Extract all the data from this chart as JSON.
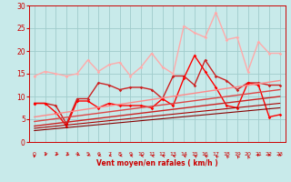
{
  "bg_color": "#c8eaea",
  "grid_color": "#a0cccc",
  "xlabel": "Vent moyen/en rafales ( km/h )",
  "xlim": [
    -0.5,
    23.5
  ],
  "ylim": [
    0,
    30
  ],
  "yticks": [
    0,
    5,
    10,
    15,
    20,
    25,
    30
  ],
  "xticks": [
    0,
    1,
    2,
    3,
    4,
    5,
    6,
    7,
    8,
    9,
    10,
    11,
    12,
    13,
    14,
    15,
    16,
    17,
    18,
    19,
    20,
    21,
    22,
    23
  ],
  "lines": [
    {
      "x": [
        0,
        1,
        2,
        3,
        4,
        5,
        6,
        7,
        8,
        9,
        10,
        11,
        12,
        13,
        14,
        15,
        16,
        17,
        18,
        19,
        20,
        21,
        22,
        23
      ],
      "y": [
        14.5,
        15.5,
        15.0,
        14.5,
        15.0,
        18.0,
        15.5,
        17.0,
        17.5,
        14.5,
        16.5,
        19.5,
        16.5,
        15.0,
        25.5,
        24.0,
        23.0,
        28.5,
        22.5,
        23.0,
        15.5,
        22.0,
        19.5,
        19.5
      ],
      "color": "#ffaaaa",
      "lw": 1.0,
      "marker": "D",
      "ms": 1.8
    },
    {
      "x": [
        0,
        1,
        2,
        3,
        4,
        5,
        6,
        7,
        8,
        9,
        10,
        11,
        12,
        13,
        14,
        15,
        16,
        17,
        18,
        19,
        20,
        21,
        22,
        23
      ],
      "y": [
        8.5,
        8.5,
        8.0,
        4.0,
        9.5,
        9.5,
        13.0,
        12.5,
        11.5,
        12.0,
        12.0,
        11.5,
        9.5,
        14.5,
        14.5,
        12.5,
        18.0,
        14.5,
        13.5,
        11.5,
        13.0,
        13.0,
        12.5,
        12.5
      ],
      "color": "#cc2222",
      "lw": 1.0,
      "marker": "D",
      "ms": 1.8
    },
    {
      "x": [
        0,
        1,
        2,
        3,
        4,
        5,
        6,
        7,
        8,
        9,
        10,
        11,
        12,
        13,
        14,
        15,
        16,
        17,
        18,
        19,
        20,
        21,
        22,
        23
      ],
      "y": [
        8.5,
        8.5,
        6.5,
        3.5,
        9.0,
        9.0,
        7.5,
        8.5,
        8.0,
        8.0,
        8.0,
        7.5,
        9.5,
        8.0,
        14.0,
        19.0,
        15.5,
        12.0,
        8.0,
        7.5,
        13.0,
        12.5,
        5.5,
        6.0
      ],
      "color": "#ff0000",
      "lw": 1.0,
      "marker": "D",
      "ms": 1.8
    },
    {
      "x": [
        0,
        23
      ],
      "y": [
        5.5,
        13.5
      ],
      "color": "#ff8888",
      "lw": 1.0,
      "marker": null
    },
    {
      "x": [
        0,
        23
      ],
      "y": [
        4.5,
        11.5
      ],
      "color": "#dd4444",
      "lw": 1.0,
      "marker": null
    },
    {
      "x": [
        0,
        23
      ],
      "y": [
        3.5,
        10.0
      ],
      "color": "#cc2222",
      "lw": 1.0,
      "marker": null
    },
    {
      "x": [
        0,
        23
      ],
      "y": [
        3.0,
        8.5
      ],
      "color": "#aa0000",
      "lw": 0.8,
      "marker": null
    },
    {
      "x": [
        0,
        23
      ],
      "y": [
        2.5,
        7.5
      ],
      "color": "#880000",
      "lw": 0.8,
      "marker": null
    }
  ],
  "arrow_angles_deg": [
    260,
    250,
    240,
    230,
    220,
    210,
    200,
    190,
    185,
    175,
    170,
    165,
    160,
    155,
    150,
    145,
    140,
    130,
    125,
    120,
    110,
    105,
    95,
    90
  ]
}
